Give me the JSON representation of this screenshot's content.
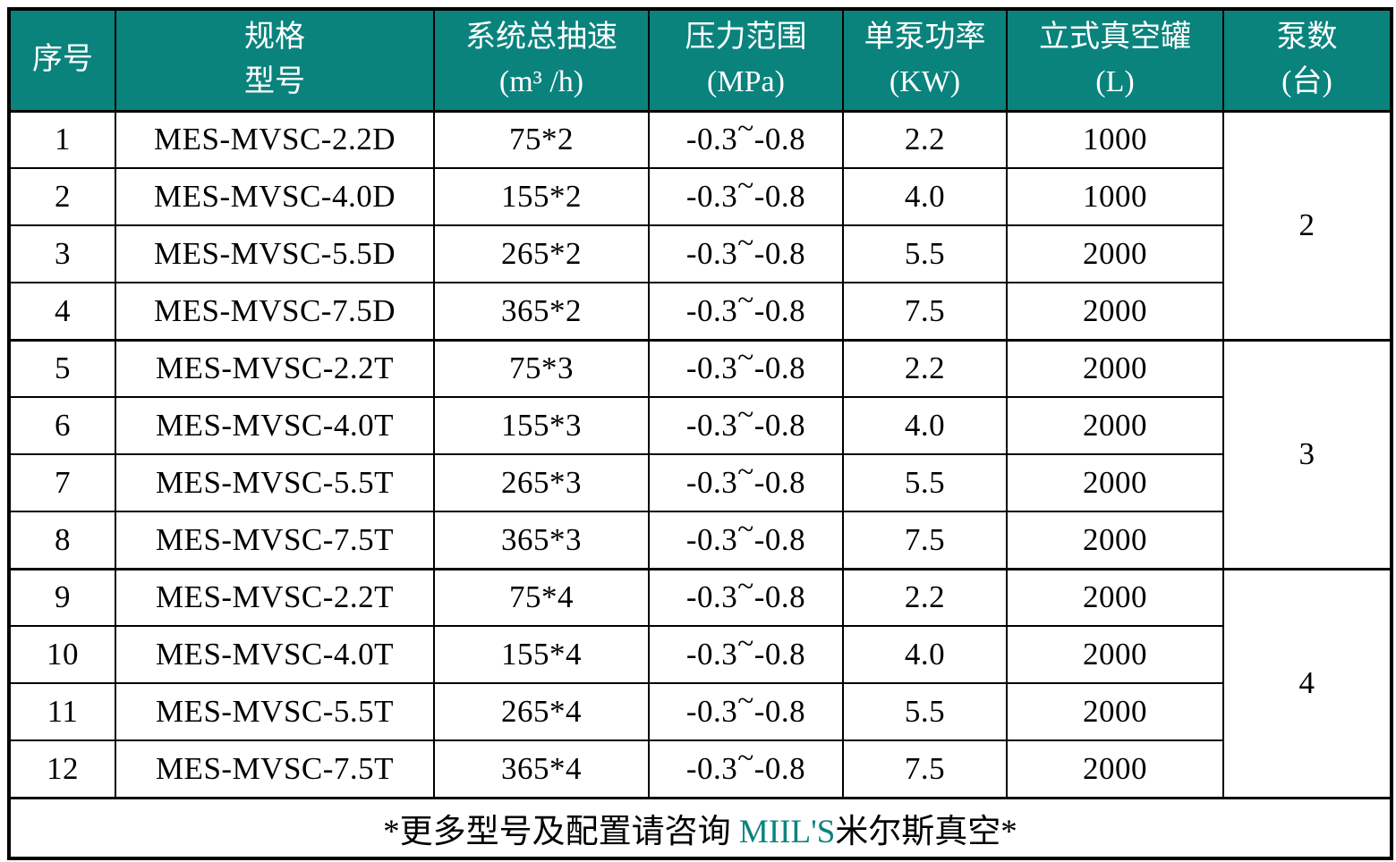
{
  "theme": {
    "accent_color": "#0a837d",
    "text_color": "#000000",
    "background_color": "#ffffff"
  },
  "table": {
    "header": {
      "columns": [
        {
          "line1": "序号",
          "line2": ""
        },
        {
          "line1": "规格",
          "line2": "型号"
        },
        {
          "line1": "系统总抽速",
          "line2": "(m³ /h)"
        },
        {
          "line1": "压力范围",
          "line2": "(MPa)"
        },
        {
          "line1": "单泵功率",
          "line2": "(KW)"
        },
        {
          "line1": "立式真空罐",
          "line2": "(L)"
        },
        {
          "line1": "泵数",
          "line2": "(台)"
        }
      ]
    },
    "rows": [
      {
        "no": "1",
        "model": "MES-MVSC-2.2D",
        "speed": "75*2",
        "pressure": "-0.3~-0.8",
        "power": "2.2",
        "tank": "1000"
      },
      {
        "no": "2",
        "model": "MES-MVSC-4.0D",
        "speed": "155*2",
        "pressure": "-0.3~-0.8",
        "power": "4.0",
        "tank": "1000"
      },
      {
        "no": "3",
        "model": "MES-MVSC-5.5D",
        "speed": "265*2",
        "pressure": "-0.3~-0.8",
        "power": "5.5",
        "tank": "2000"
      },
      {
        "no": "4",
        "model": "MES-MVSC-7.5D",
        "speed": "365*2",
        "pressure": "-0.3~-0.8",
        "power": "7.5",
        "tank": "2000"
      },
      {
        "no": "5",
        "model": "MES-MVSC-2.2T",
        "speed": "75*3",
        "pressure": "-0.3~-0.8",
        "power": "2.2",
        "tank": "2000"
      },
      {
        "no": "6",
        "model": "MES-MVSC-4.0T",
        "speed": "155*3",
        "pressure": "-0.3~-0.8",
        "power": "4.0",
        "tank": "2000"
      },
      {
        "no": "7",
        "model": "MES-MVSC-5.5T",
        "speed": "265*3",
        "pressure": "-0.3~-0.8",
        "power": "5.5",
        "tank": "2000"
      },
      {
        "no": "8",
        "model": "MES-MVSC-7.5T",
        "speed": "365*3",
        "pressure": "-0.3~-0.8",
        "power": "7.5",
        "tank": "2000"
      },
      {
        "no": "9",
        "model": "MES-MVSC-2.2T",
        "speed": "75*4",
        "pressure": "-0.3~-0.8",
        "power": "2.2",
        "tank": "2000"
      },
      {
        "no": "10",
        "model": "MES-MVSC-4.0T",
        "speed": "155*4",
        "pressure": "-0.3~-0.8",
        "power": "4.0",
        "tank": "2000"
      },
      {
        "no": "11",
        "model": "MES-MVSC-5.5T",
        "speed": "265*4",
        "pressure": "-0.3~-0.8",
        "power": "5.5",
        "tank": "2000"
      },
      {
        "no": "12",
        "model": "MES-MVSC-7.5T",
        "speed": "365*4",
        "pressure": "-0.3~-0.8",
        "power": "7.5",
        "tank": "2000"
      }
    ],
    "pump_groups": [
      {
        "span": 4,
        "count": "2"
      },
      {
        "span": 4,
        "count": "3"
      },
      {
        "span": 4,
        "count": "4"
      }
    ],
    "footer": {
      "prefix": "*更多型号及配置请咨询 ",
      "brand": "MIIL'S",
      "suffix": "米尔斯真空*"
    }
  }
}
